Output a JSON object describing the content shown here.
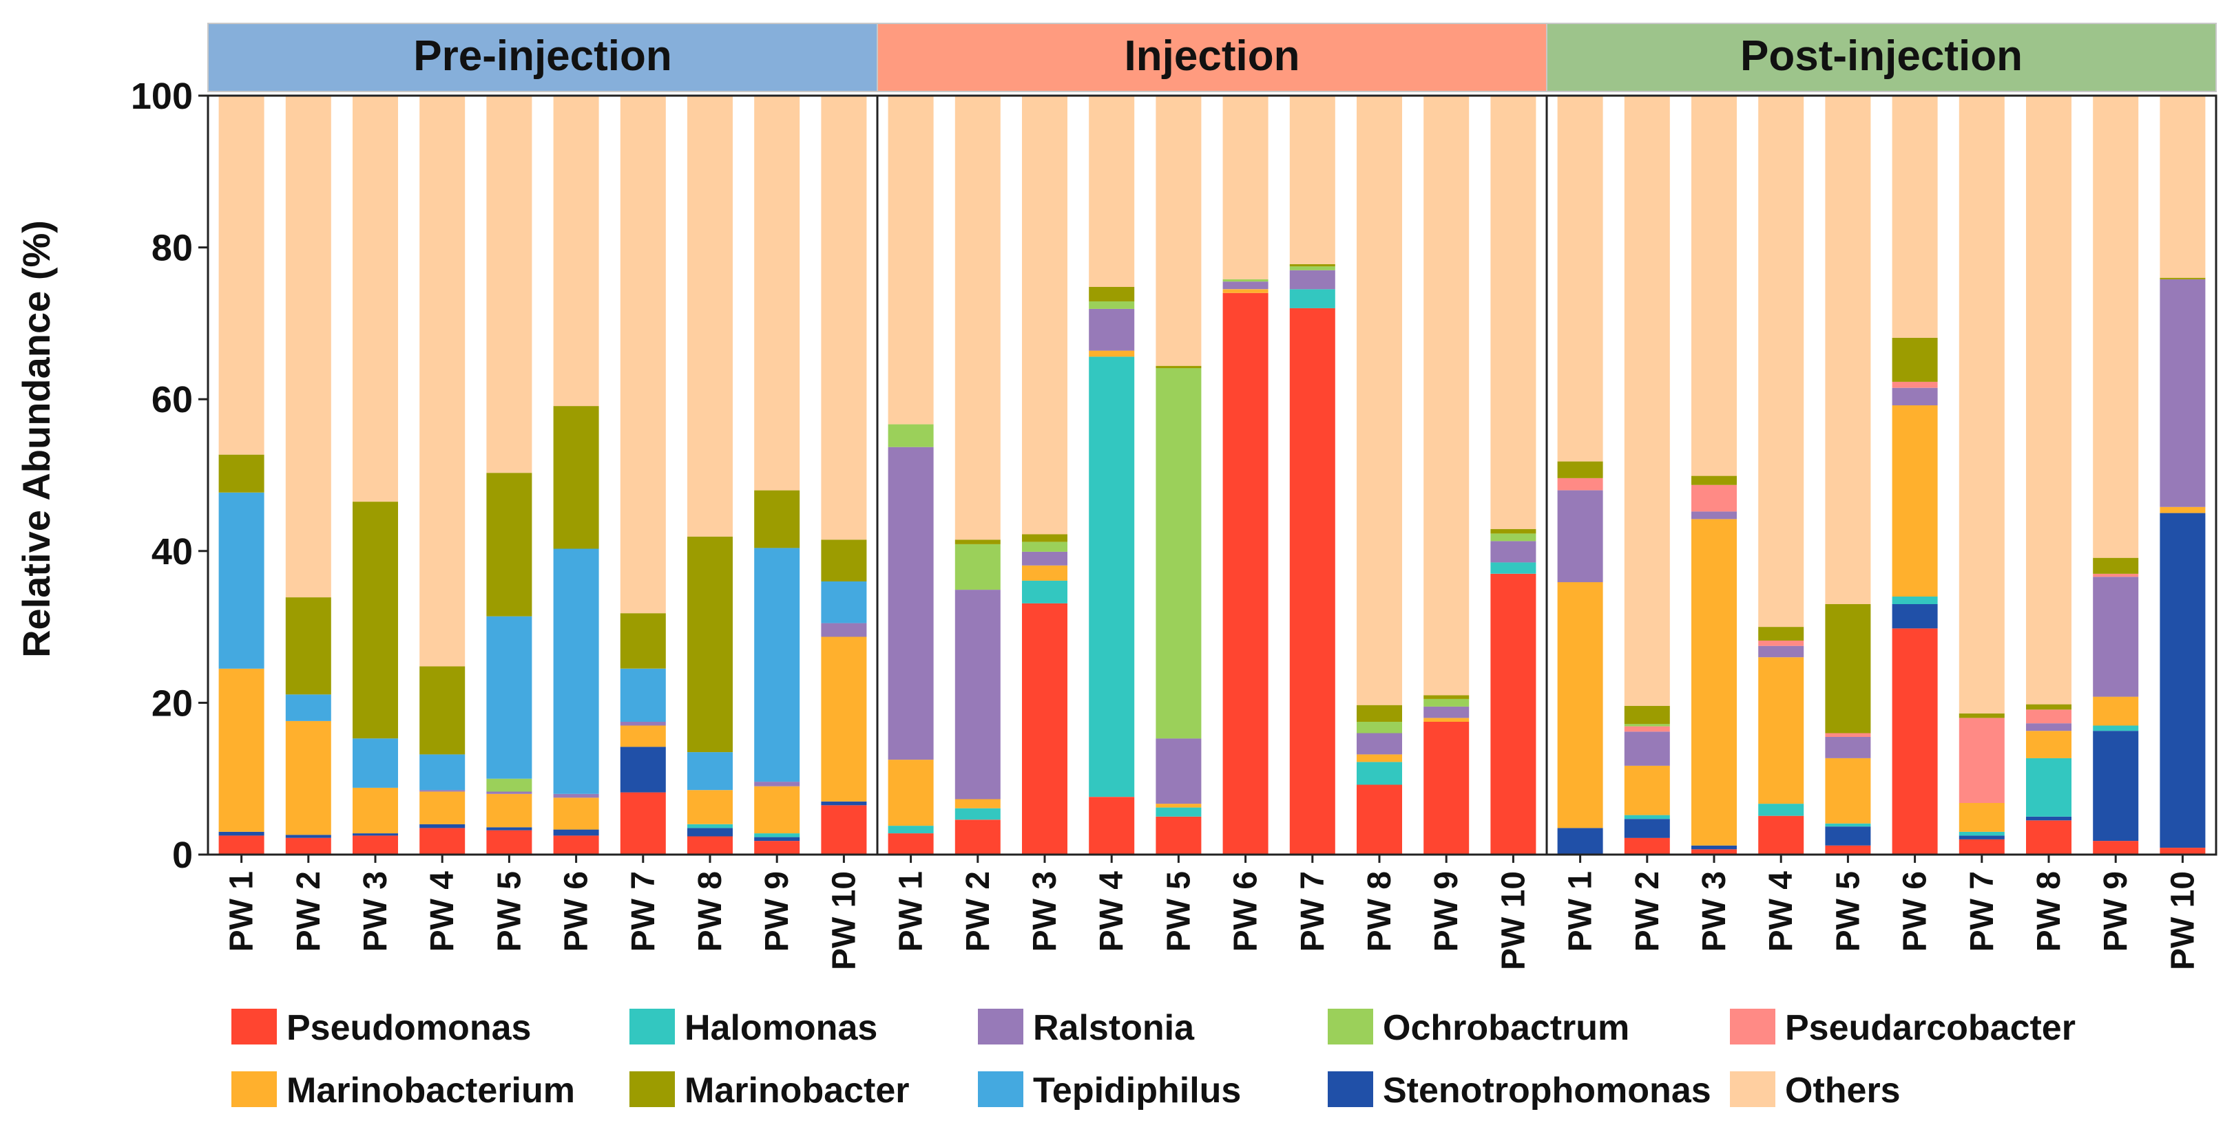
{
  "chart_data": {
    "type": "stacked-bar",
    "ylabel": "Relative Abundance (%)",
    "ylim": [
      0,
      100
    ],
    "yticks": [
      0,
      20,
      40,
      60,
      80,
      100
    ],
    "groups": [
      {
        "label": "Pre-injection",
        "color": "#86AFDA"
      },
      {
        "label": "Injection",
        "color": "#FF9B7F"
      },
      {
        "label": "Post-injection",
        "color": "#9DC48B"
      }
    ],
    "categories": [
      "PW 1",
      "PW 2",
      "PW 3",
      "PW 4",
      "PW 5",
      "PW 6",
      "PW 7",
      "PW 8",
      "PW 9",
      "PW 10"
    ],
    "series": [
      {
        "name": "Pseudomonas",
        "color": "#FF4530"
      },
      {
        "name": "Halomonas",
        "color": "#33C7C0"
      },
      {
        "name": "Ralstonia",
        "color": "#977AB8"
      },
      {
        "name": "Ochrobactrum",
        "color": "#9BD05A"
      },
      {
        "name": "Pseudarcobacter",
        "color": "#FF8A85"
      },
      {
        "name": "Marinobacterium",
        "color": "#FFB02D"
      },
      {
        "name": "Marinobacter",
        "color": "#9C9C00"
      },
      {
        "name": "Tepidiphilus",
        "color": "#44A9E0"
      },
      {
        "name": "Stenotrophomonas",
        "color": "#2050A8"
      },
      {
        "name": "Others",
        "color": "#FFCFA0"
      }
    ],
    "stack_order": [
      "Pseudomonas",
      "Stenotrophomonas",
      "Halomonas",
      "Marinobacterium",
      "Ralstonia",
      "Pseudarcobacter",
      "Ochrobactrum",
      "Tepidiphilus",
      "Marinobacter",
      "Others"
    ],
    "values": [
      [
        {
          "Pseudomonas": 2.5,
          "Stenotrophomonas": 0.5,
          "Marinobacterium": 21.5,
          "Tepidiphilus": 23.2,
          "Marinobacter": 5.0,
          "Others": 47.3
        },
        {
          "Pseudomonas": 2.2,
          "Stenotrophomonas": 0.4,
          "Marinobacterium": 15.0,
          "Tepidiphilus": 3.5,
          "Marinobacter": 12.8,
          "Others": 66.1
        },
        {
          "Pseudomonas": 2.5,
          "Stenotrophomonas": 0.3,
          "Marinobacterium": 6.0,
          "Tepidiphilus": 6.5,
          "Marinobacter": 31.2,
          "Others": 53.5
        },
        {
          "Pseudomonas": 3.5,
          "Stenotrophomonas": 0.5,
          "Marinobacterium": 4.3,
          "Ralstonia": 0.2,
          "Tepidiphilus": 4.7,
          "Marinobacter": 11.6,
          "Others": 75.2
        },
        {
          "Pseudomonas": 3.2,
          "Stenotrophomonas": 0.4,
          "Marinobacterium": 4.4,
          "Ralstonia": 0.3,
          "Ochrobactrum": 1.7,
          "Tepidiphilus": 21.4,
          "Marinobacter": 18.9,
          "Others": 49.7
        },
        {
          "Pseudomonas": 2.5,
          "Stenotrophomonas": 0.8,
          "Marinobacterium": 4.2,
          "Ralstonia": 0.5,
          "Tepidiphilus": 32.3,
          "Marinobacter": 18.8,
          "Others": 40.9
        },
        {
          "Pseudomonas": 8.2,
          "Stenotrophomonas": 6.0,
          "Marinobacterium": 2.8,
          "Ralstonia": 0.5,
          "Tepidiphilus": 7.0,
          "Marinobacter": 7.3,
          "Others": 68.2
        },
        {
          "Pseudomonas": 2.4,
          "Stenotrophomonas": 1.1,
          "Halomonas": 0.5,
          "Marinobacterium": 4.5,
          "Tepidiphilus": 5.0,
          "Marinobacter": 28.4,
          "Others": 58.1
        },
        {
          "Pseudomonas": 1.8,
          "Stenotrophomonas": 0.5,
          "Halomonas": 0.5,
          "Marinobacterium": 6.2,
          "Ralstonia": 0.6,
          "Tepidiphilus": 30.8,
          "Marinobacter": 7.6,
          "Others": 52.0
        },
        {
          "Pseudomonas": 6.5,
          "Stenotrophomonas": 0.5,
          "Marinobacterium": 21.7,
          "Ralstonia": 1.8,
          "Tepidiphilus": 5.5,
          "Marinobacter": 5.5,
          "Others": 58.5
        }
      ],
      [
        {
          "Pseudomonas": 2.8,
          "Halomonas": 1.0,
          "Marinobacterium": 8.7,
          "Ralstonia": 41.2,
          "Ochrobactrum": 3.0,
          "Others": 43.3
        },
        {
          "Pseudomonas": 4.6,
          "Halomonas": 1.5,
          "Marinobacterium": 1.2,
          "Ralstonia": 27.6,
          "Ochrobactrum": 6.0,
          "Marinobacter": 0.6,
          "Others": 58.5
        },
        {
          "Pseudomonas": 33.1,
          "Halomonas": 3.0,
          "Marinobacterium": 2.0,
          "Ralstonia": 1.8,
          "Ochrobactrum": 1.3,
          "Marinobacter": 1.0,
          "Others": 57.8
        },
        {
          "Pseudomonas": 7.6,
          "Halomonas": 58.0,
          "Marinobacterium": 0.8,
          "Ralstonia": 5.5,
          "Ochrobactrum": 1.0,
          "Marinobacter": 1.9,
          "Others": 25.2
        },
        {
          "Pseudomonas": 5.0,
          "Halomonas": 1.2,
          "Marinobacterium": 0.5,
          "Ralstonia": 8.6,
          "Ochrobactrum": 48.8,
          "Marinobacter": 0.3,
          "Others": 35.6
        },
        {
          "Pseudomonas": 74.0,
          "Marinobacterium": 0.5,
          "Ralstonia": 1.0,
          "Ochrobactrum": 0.3,
          "Others": 24.2
        },
        {
          "Pseudomonas": 72.0,
          "Halomonas": 2.5,
          "Ralstonia": 2.5,
          "Ochrobactrum": 0.5,
          "Marinobacter": 0.3,
          "Others": 22.2
        },
        {
          "Pseudomonas": 9.2,
          "Halomonas": 3.0,
          "Marinobacterium": 1.0,
          "Ralstonia": 2.8,
          "Ochrobactrum": 1.5,
          "Marinobacter": 2.2,
          "Others": 80.3
        },
        {
          "Pseudomonas": 17.5,
          "Marinobacterium": 0.5,
          "Ralstonia": 1.5,
          "Ochrobactrum": 1.0,
          "Marinobacter": 0.5,
          "Others": 79.0
        },
        {
          "Pseudomonas": 37.0,
          "Halomonas": 1.5,
          "Ralstonia": 2.8,
          "Ochrobactrum": 1.0,
          "Marinobacter": 0.6,
          "Others": 57.1
        }
      ],
      [
        {
          "Stenotrophomonas": 3.5,
          "Marinobacterium": 32.4,
          "Ralstonia": 12.1,
          "Pseudarcobacter": 1.6,
          "Marinobacter": 2.2,
          "Others": 48.2
        },
        {
          "Pseudomonas": 2.2,
          "Stenotrophomonas": 2.5,
          "Marinobacterium": 6.5,
          "Ralstonia": 4.5,
          "Halomonas": 0.5,
          "Pseudarcobacter": 0.7,
          "Ochrobactrum": 0.3,
          "Marinobacter": 2.4,
          "Others": 80.4
        },
        {
          "Pseudomonas": 0.7,
          "Stenotrophomonas": 0.5,
          "Marinobacterium": 43.0,
          "Ralstonia": 1.0,
          "Pseudarcobacter": 3.5,
          "Marinobacter": 1.2,
          "Others": 50.1
        },
        {
          "Pseudomonas": 5.1,
          "Halomonas": 1.6,
          "Marinobacterium": 19.3,
          "Ralstonia": 1.5,
          "Pseudarcobacter": 0.7,
          "Marinobacter": 1.8,
          "Others": 70.0
        },
        {
          "Pseudomonas": 1.2,
          "Stenotrophomonas": 2.5,
          "Halomonas": 0.4,
          "Marinobacterium": 8.6,
          "Ralstonia": 2.8,
          "Pseudarcobacter": 0.5,
          "Marinobacter": 17.0,
          "Others": 67.0
        },
        {
          "Pseudomonas": 29.8,
          "Stenotrophomonas": 3.2,
          "Halomonas": 1.0,
          "Marinobacterium": 25.2,
          "Ralstonia": 2.3,
          "Pseudarcobacter": 0.8,
          "Marinobacter": 5.8,
          "Others": 31.9
        },
        {
          "Pseudomonas": 2.0,
          "Stenotrophomonas": 0.5,
          "Halomonas": 0.5,
          "Marinobacterium": 3.8,
          "Pseudarcobacter": 11.2,
          "Marinobacter": 0.6,
          "Others": 81.4
        },
        {
          "Pseudomonas": 4.5,
          "Stenotrophomonas": 0.5,
          "Halomonas": 7.7,
          "Marinobacterium": 3.6,
          "Ralstonia": 1.0,
          "Pseudarcobacter": 1.8,
          "Marinobacter": 0.7,
          "Others": 80.2
        },
        {
          "Pseudomonas": 1.8,
          "Stenotrophomonas": 14.5,
          "Halomonas": 0.7,
          "Marinobacterium": 3.8,
          "Ralstonia": 15.8,
          "Pseudarcobacter": 0.4,
          "Marinobacter": 2.1,
          "Others": 60.9
        },
        {
          "Pseudomonas": 0.9,
          "Stenotrophomonas": 44.1,
          "Marinobacterium": 0.8,
          "Ralstonia": 30.0,
          "Marinobacter": 0.2,
          "Others": 24.0
        }
      ]
    ]
  }
}
